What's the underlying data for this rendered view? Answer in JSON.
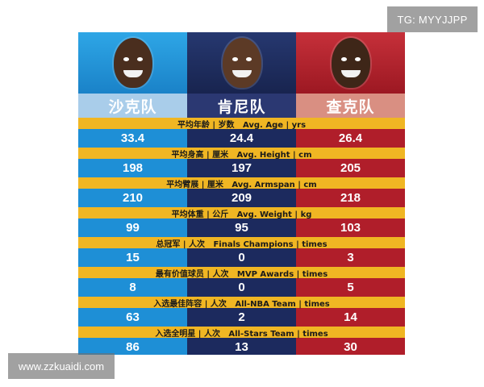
{
  "watermarks": {
    "top_right": "TG: MYYJJPP",
    "bottom_left": "www.zzkuaidi.com"
  },
  "colors": {
    "team1": "#1e8fd6",
    "team2": "#1c2a5e",
    "team3": "#b01e2a",
    "label_band": "#f0b623"
  },
  "teams": [
    {
      "name": "沙克队"
    },
    {
      "name": "肯尼队"
    },
    {
      "name": "查克队"
    }
  ],
  "stats": [
    {
      "label": "平均年龄 | 岁数   Avg. Age | yrs",
      "values": [
        "33.4",
        "24.4",
        "26.4"
      ]
    },
    {
      "label": "平均身高 | 厘米   Avg. Height | cm",
      "values": [
        "198",
        "197",
        "205"
      ]
    },
    {
      "label": "平均臂展 | 厘米   Avg. Armspan | cm",
      "values": [
        "210",
        "209",
        "218"
      ]
    },
    {
      "label": "平均体重 | 公斤   Avg. Weight | kg",
      "values": [
        "99",
        "95",
        "103"
      ]
    },
    {
      "label": "总冠军 | 人次   Finals Champions | times",
      "values": [
        "15",
        "0",
        "3"
      ]
    },
    {
      "label": "最有价值球员 | 人次   MVP Awards | times",
      "values": [
        "8",
        "0",
        "5"
      ]
    },
    {
      "label": "入选最佳阵容 | 人次   All-NBA Team | times",
      "values": [
        "63",
        "2",
        "14"
      ]
    },
    {
      "label": "入选全明星 | 人次   All-Stars Team | times",
      "values": [
        "86",
        "13",
        "30"
      ]
    }
  ]
}
